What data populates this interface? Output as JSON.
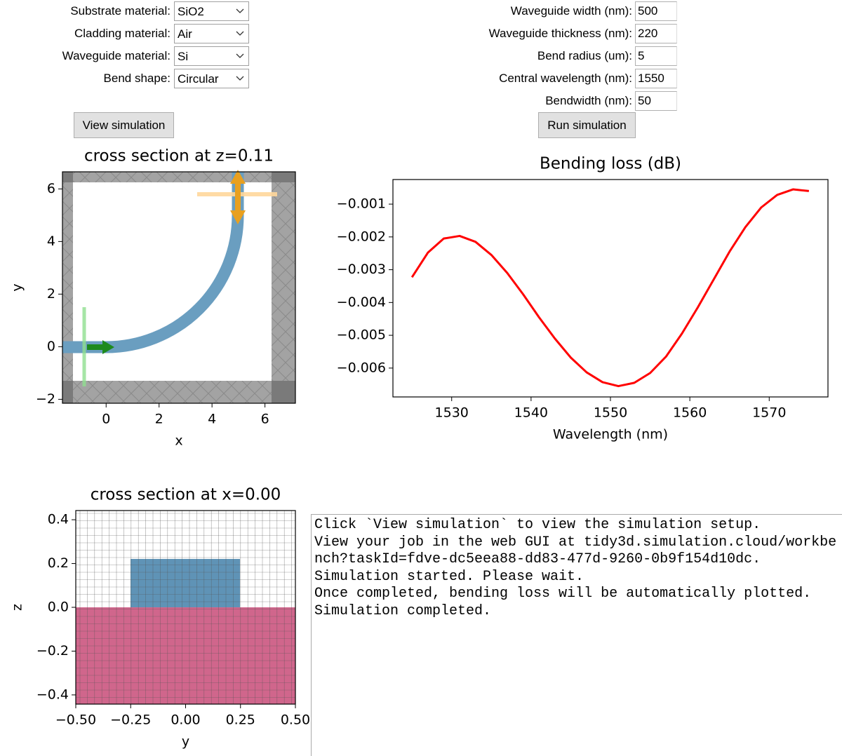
{
  "form": {
    "left": [
      {
        "label": "Substrate material:",
        "value": "SiO2"
      },
      {
        "label": "Cladding material:",
        "value": "Air"
      },
      {
        "label": "Waveguide material:",
        "value": "Si"
      },
      {
        "label": "Bend shape:",
        "value": "Circular"
      }
    ],
    "right": [
      {
        "label": "Waveguide width (nm):",
        "value": "500"
      },
      {
        "label": "Waveguide thickness (nm):",
        "value": "220"
      },
      {
        "label": "Bend radius (um):",
        "value": "5"
      },
      {
        "label": "Central wavelength (nm):",
        "value": "1550"
      },
      {
        "label": "Bendwidth (nm):",
        "value": "50"
      }
    ],
    "view_button": "View simulation",
    "run_button": "Run simulation"
  },
  "plots": [
    {
      "type": "geometry",
      "title": "cross section at z=0.11",
      "xlabel": "x",
      "ylabel": "y",
      "xlim": [
        -1.65,
        7.15
      ],
      "ylim": [
        -2.15,
        6.65
      ],
      "xticks": [
        0,
        2,
        4,
        6
      ],
      "yticks": [
        {
          "value": -2,
          "label": "−2"
        },
        0,
        2,
        4,
        6
      ]
    },
    {
      "type": "line",
      "title": "Bending loss (dB)",
      "xlabel": "Wavelength (nm)",
      "xlim": [
        1522.6,
        1577.4
      ],
      "ylim": [
        -0.00688,
        -0.00025
      ],
      "xticks": [
        1530,
        1540,
        1550,
        1560,
        1570
      ],
      "yticks": [
        {
          "value": -0.001,
          "label": "−0.001"
        },
        {
          "value": -0.002,
          "label": "−0.002"
        },
        {
          "value": -0.003,
          "label": "−0.003"
        },
        {
          "value": -0.004,
          "label": "−0.004"
        },
        {
          "value": -0.005,
          "label": "−0.005"
        },
        {
          "value": -0.006,
          "label": "−0.006"
        }
      ],
      "color": "#ff0000",
      "x": [
        1525,
        1527,
        1529,
        1531,
        1533,
        1535,
        1537,
        1539,
        1541,
        1543,
        1545,
        1547,
        1549,
        1551,
        1553,
        1555,
        1557,
        1559,
        1561,
        1563,
        1565,
        1567,
        1569,
        1571,
        1573,
        1575
      ],
      "values": [
        -0.00323,
        -0.00248,
        -0.00205,
        -0.00197,
        -0.00215,
        -0.00255,
        -0.0031,
        -0.00375,
        -0.00445,
        -0.0051,
        -0.00568,
        -0.00613,
        -0.00643,
        -0.00655,
        -0.00645,
        -0.00615,
        -0.00565,
        -0.00495,
        -0.00415,
        -0.0033,
        -0.00245,
        -0.0017,
        -0.0011,
        -0.00072,
        -0.00055,
        -0.0006
      ]
    },
    {
      "type": "geometry",
      "title": "cross section at x=0.00",
      "xlabel": "y",
      "ylabel": "z",
      "xlim": [
        -0.5,
        0.5
      ],
      "ylim": [
        -0.442,
        0.442
      ],
      "xticks": [
        {
          "value": -0.5,
          "label": "−0.50"
        },
        {
          "value": -0.25,
          "label": "−0.25"
        },
        {
          "value": 0,
          "label": "0.00"
        },
        {
          "value": 0.25,
          "label": "0.25"
        },
        {
          "value": 0.5,
          "label": "0.50"
        }
      ],
      "yticks": [
        {
          "value": -0.4,
          "label": "−0.4"
        },
        {
          "value": -0.2,
          "label": "−0.2"
        },
        {
          "value": 0,
          "label": "0.0"
        },
        {
          "value": 0.2,
          "label": "0.2"
        },
        {
          "value": 0.4,
          "label": "0.4"
        }
      ]
    }
  ],
  "log": [
    "Click `View simulation` to view the simulation setup.",
    "View your job in the web GUI at tidy3d.simulation.cloud/workbench?taskId=fdve-dc5eea88-dd83-477d-9260-0b9f154d10dc.",
    "Simulation started. Please wait.",
    "Once completed, bending loss will be automatically plotted.",
    "Simulation completed."
  ]
}
